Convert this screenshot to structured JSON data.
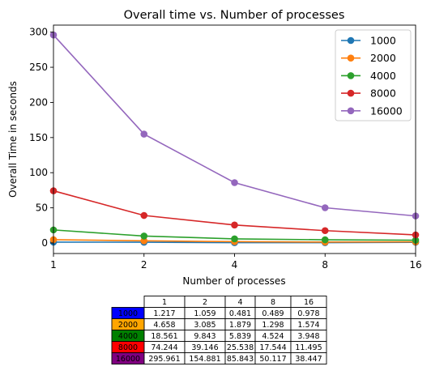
{
  "chart_data": {
    "type": "line",
    "title": "Overall time vs. Number of processes",
    "xlabel": "Number of processes",
    "ylabel": "Overall Time in seconds",
    "x_categories": [
      "1",
      "2",
      "4",
      "8",
      "16"
    ],
    "ylim": [
      -15,
      310
    ],
    "yticks": [
      0,
      50,
      100,
      150,
      200,
      250,
      300
    ],
    "grid": false,
    "legend_position": "top-right",
    "series": [
      {
        "name": "1000",
        "color": "#1f77b4",
        "values": [
          1.217,
          1.059,
          0.481,
          0.489,
          0.978
        ]
      },
      {
        "name": "2000",
        "color": "#ff7f0e",
        "values": [
          4.658,
          3.085,
          1.879,
          1.298,
          1.574
        ]
      },
      {
        "name": "4000",
        "color": "#2ca02c",
        "values": [
          18.561,
          9.843,
          5.839,
          4.524,
          3.948
        ]
      },
      {
        "name": "8000",
        "color": "#d62728",
        "values": [
          74.244,
          39.146,
          25.538,
          17.544,
          11.495
        ]
      },
      {
        "name": "16000",
        "color": "#9467bd",
        "values": [
          295.961,
          154.881,
          85.843,
          50.117,
          38.447
        ]
      }
    ]
  },
  "table": {
    "col_headers": [
      "1",
      "2",
      "4",
      "8",
      "16"
    ],
    "rows": [
      {
        "label": "1000",
        "color": "#0000ff",
        "cells": [
          "1.217",
          "1.059",
          "0.481",
          "0.489",
          "0.978"
        ]
      },
      {
        "label": "2000",
        "color": "#ffa500",
        "cells": [
          "4.658",
          "3.085",
          "1.879",
          "1.298",
          "1.574"
        ]
      },
      {
        "label": "4000",
        "color": "#008000",
        "cells": [
          "18.561",
          "9.843",
          "5.839",
          "4.524",
          "3.948"
        ]
      },
      {
        "label": "8000",
        "color": "#ff0000",
        "cells": [
          "74.244",
          "39.146",
          "25.538",
          "17.544",
          "11.495"
        ]
      },
      {
        "label": "16000",
        "color": "#800080",
        "cells": [
          "295.961",
          "154.881",
          "85.843",
          "50.117",
          "38.447"
        ]
      }
    ]
  }
}
